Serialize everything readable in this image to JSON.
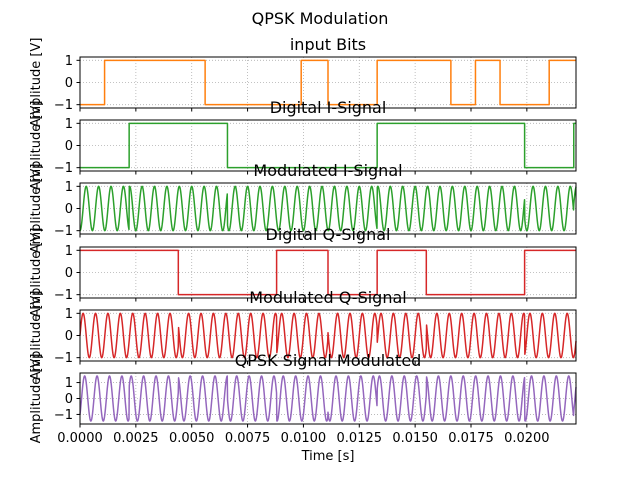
{
  "figure": {
    "suptitle": "QPSK Modulation"
  },
  "chart_data": [
    {
      "type": "line",
      "title": "input Bits",
      "ylabel": "Amplitude [V]",
      "xlabel": "",
      "color": "#ff7f0e",
      "xlim": [
        0,
        0.0222
      ],
      "ylim": [
        -1.15,
        1.15
      ],
      "yticks": [
        -1,
        0,
        1
      ],
      "grid": true,
      "signal": "square",
      "series": [
        {
          "x": [
            0,
            0.0011,
            0.0011,
            0.0056,
            0.0056,
            0.0099,
            0.0099,
            0.0111,
            0.0111,
            0.0133,
            0.0133,
            0.0166,
            0.0166,
            0.0177,
            0.0177,
            0.0188,
            0.0188,
            0.021,
            0.021,
            0.0222
          ],
          "values": [
            -1,
            -1,
            1,
            1,
            -1,
            -1,
            1,
            1,
            -1,
            -1,
            1,
            1,
            -1,
            -1,
            1,
            1,
            -1,
            -1,
            1,
            1
          ]
        }
      ]
    },
    {
      "type": "line",
      "title": "Digital I-Signal",
      "ylabel": "Amplitude [V]",
      "xlabel": "",
      "color": "#2ca02c",
      "xlim": [
        0,
        0.0222
      ],
      "ylim": [
        -1.15,
        1.15
      ],
      "yticks": [
        -1,
        0,
        1
      ],
      "grid": true,
      "signal": "square",
      "series": [
        {
          "x": [
            0,
            0.0022,
            0.0022,
            0.0066,
            0.0066,
            0.0133,
            0.0133,
            0.0199,
            0.0199,
            0.0221,
            0.0221,
            0.0222
          ],
          "values": [
            -1,
            -1,
            1,
            1,
            -1,
            -1,
            1,
            1,
            -1,
            -1,
            1,
            1
          ]
        }
      ]
    },
    {
      "type": "line",
      "title": "Modulated I-Signal",
      "ylabel": "Amplitude [V]",
      "xlabel": "",
      "color": "#2ca02c",
      "xlim": [
        0,
        0.0222
      ],
      "ylim": [
        -1.15,
        1.15
      ],
      "yticks": [
        -1,
        0,
        1
      ],
      "grid": true,
      "signal": "modulated",
      "carrier_hz": 1800,
      "carrier": "cos",
      "envelope": {
        "x": [
          0,
          0.0022,
          0.0066,
          0.0133,
          0.0199,
          0.0221
        ],
        "values": [
          -1,
          1,
          -1,
          1,
          -1,
          1
        ]
      }
    },
    {
      "type": "line",
      "title": "Digital Q-Signal",
      "ylabel": "Amplitude [V]",
      "xlabel": "",
      "color": "#d62728",
      "xlim": [
        0,
        0.0222
      ],
      "ylim": [
        -1.15,
        1.15
      ],
      "yticks": [
        -1,
        0,
        1
      ],
      "grid": true,
      "signal": "square",
      "series": [
        {
          "x": [
            0,
            0.0044,
            0.0044,
            0.0088,
            0.0088,
            0.0111,
            0.0111,
            0.0133,
            0.0133,
            0.0155,
            0.0155,
            0.0199,
            0.0199,
            0.0222
          ],
          "values": [
            1,
            1,
            -1,
            -1,
            1,
            1,
            -1,
            -1,
            1,
            1,
            -1,
            -1,
            1,
            1
          ]
        }
      ]
    },
    {
      "type": "line",
      "title": "Modulated Q-Signal",
      "ylabel": "Amplitude [V]",
      "xlabel": "",
      "color": "#d62728",
      "xlim": [
        0,
        0.0222
      ],
      "ylim": [
        -1.15,
        1.15
      ],
      "yticks": [
        -1,
        0,
        1
      ],
      "grid": true,
      "signal": "modulated",
      "carrier_hz": 1800,
      "carrier": "sin",
      "envelope": {
        "x": [
          0,
          0.0044,
          0.0088,
          0.0111,
          0.0133,
          0.0155,
          0.0199
        ],
        "values": [
          1,
          -1,
          1,
          -1,
          1,
          -1,
          1
        ]
      }
    },
    {
      "type": "line",
      "title": "QPSK Signal Modulated",
      "ylabel": "Amplitude [V]",
      "xlabel": "Time [s]",
      "color": "#9467bd",
      "xlim": [
        0,
        0.0222
      ],
      "ylim": [
        -1.6,
        1.6
      ],
      "yticks": [
        -1,
        0,
        1
      ],
      "xticks": [
        0,
        0.0025,
        0.005,
        0.0075,
        0.01,
        0.0125,
        0.015,
        0.0175,
        0.02
      ],
      "xticklabels": [
        "0.0000",
        "0.0025",
        "0.0050",
        "0.0075",
        "0.0100",
        "0.0125",
        "0.0150",
        "0.0175",
        "0.0200"
      ],
      "grid": true,
      "signal": "qpsk_sum",
      "carrier_hz": 1800
    }
  ]
}
